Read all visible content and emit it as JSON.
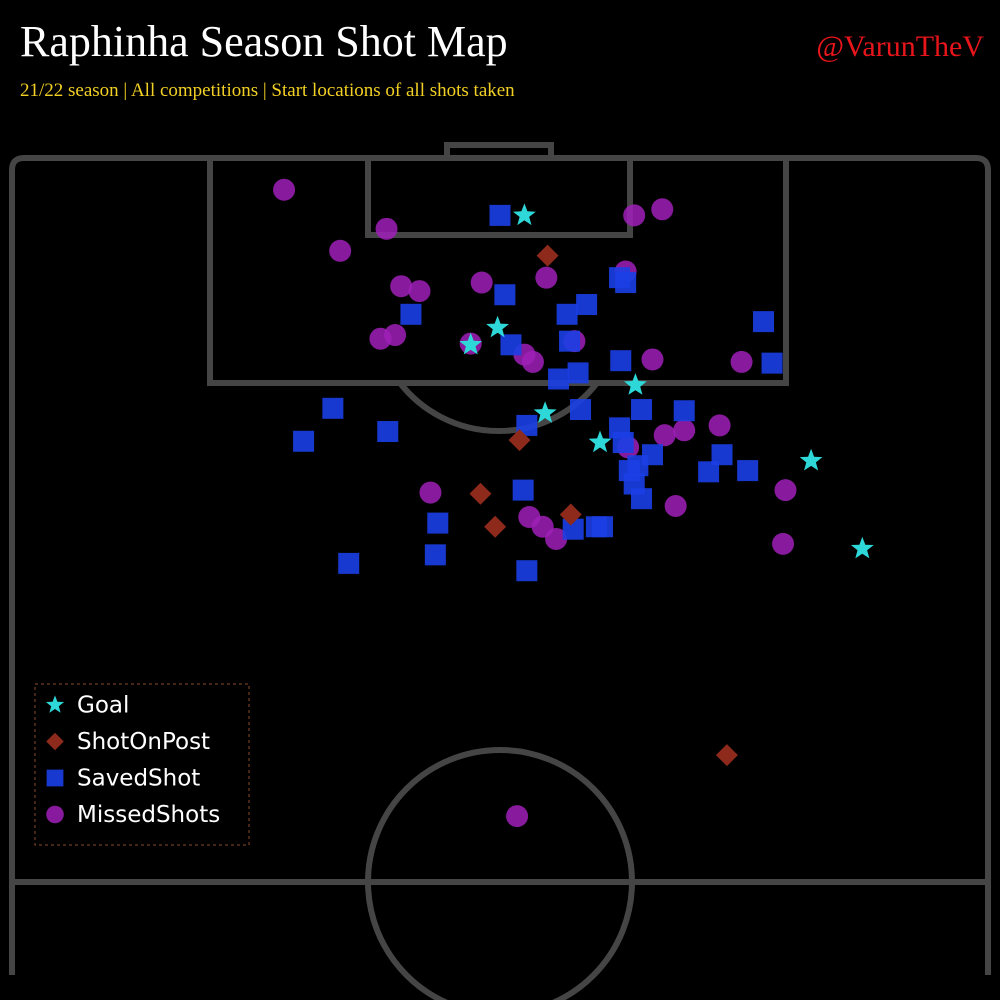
{
  "chart_data": {
    "type": "scatter",
    "title": "Raphinha Season Shot Map",
    "subtitle": "21/22 season | All competitions | Start locations of all shots taken",
    "credit": "@VarunTheV",
    "xlim": [
      0,
      80
    ],
    "ylim": [
      0,
      66.5
    ],
    "legend": "lower left",
    "series": [
      {
        "name": "Goal",
        "color": "#2fd8d8",
        "marker": "star",
        "x": [
          42.0,
          39.8,
          37.6,
          51.1,
          43.7,
          48.2,
          65.5,
          69.7
        ],
        "values": [
          4.7,
          13.9,
          15.3,
          18.6,
          20.9,
          23.3,
          24.8,
          32.0
        ]
      },
      {
        "name": "ShotOnPost",
        "color": "#8e2a1c",
        "marker": "diamond",
        "x": [
          43.9,
          41.6,
          38.4,
          45.8,
          39.6,
          58.6
        ],
        "values": [
          8.0,
          23.1,
          27.5,
          29.2,
          30.2,
          48.9
        ]
      },
      {
        "name": "SavedShot",
        "color": "#1b3fe6",
        "marker": "square",
        "x": [
          40.0,
          40.4,
          32.7,
          47.1,
          45.5,
          49.8,
          50.3,
          61.6,
          62.3,
          45.7,
          40.9,
          49.9,
          44.8,
          46.4,
          26.3,
          23.9,
          30.8,
          46.6,
          51.6,
          55.1,
          42.2,
          49.8,
          50.1,
          52.5,
          50.6,
          51.3,
          58.2,
          57.1,
          60.3,
          51.0,
          51.6,
          41.9,
          34.9,
          46.0,
          47.9,
          48.4,
          34.7,
          27.6,
          42.2
        ],
        "values": [
          4.7,
          11.2,
          12.8,
          12.0,
          12.8,
          9.8,
          10.2,
          13.4,
          16.8,
          15.0,
          15.3,
          16.6,
          18.1,
          17.6,
          20.5,
          23.2,
          22.4,
          20.6,
          20.6,
          20.7,
          21.9,
          22.1,
          23.3,
          24.3,
          25.6,
          25.2,
          24.3,
          25.7,
          25.6,
          26.7,
          27.9,
          27.2,
          29.9,
          30.4,
          30.2,
          30.2,
          32.5,
          33.2,
          33.8
        ]
      },
      {
        "name": "MissedShots",
        "color": "#a020b8",
        "marker": "circle",
        "x": [
          22.3,
          30.7,
          51.0,
          53.3,
          26.9,
          50.3,
          43.8,
          38.5,
          31.9,
          33.4,
          30.2,
          31.4,
          46.1,
          42.0,
          42.7,
          52.5,
          59.8,
          37.6,
          58.0,
          55.1,
          53.5,
          50.5,
          34.3,
          63.4,
          54.4,
          42.4,
          43.5,
          44.6,
          63.2,
          41.4
        ],
        "values": [
          2.6,
          5.8,
          4.7,
          4.2,
          7.6,
          9.3,
          9.8,
          10.2,
          10.5,
          10.9,
          14.8,
          14.5,
          15.0,
          16.1,
          16.7,
          16.5,
          16.7,
          15.2,
          21.9,
          22.3,
          22.7,
          23.7,
          27.4,
          27.2,
          28.5,
          29.4,
          30.2,
          31.2,
          31.6,
          53.9
        ]
      }
    ]
  }
}
